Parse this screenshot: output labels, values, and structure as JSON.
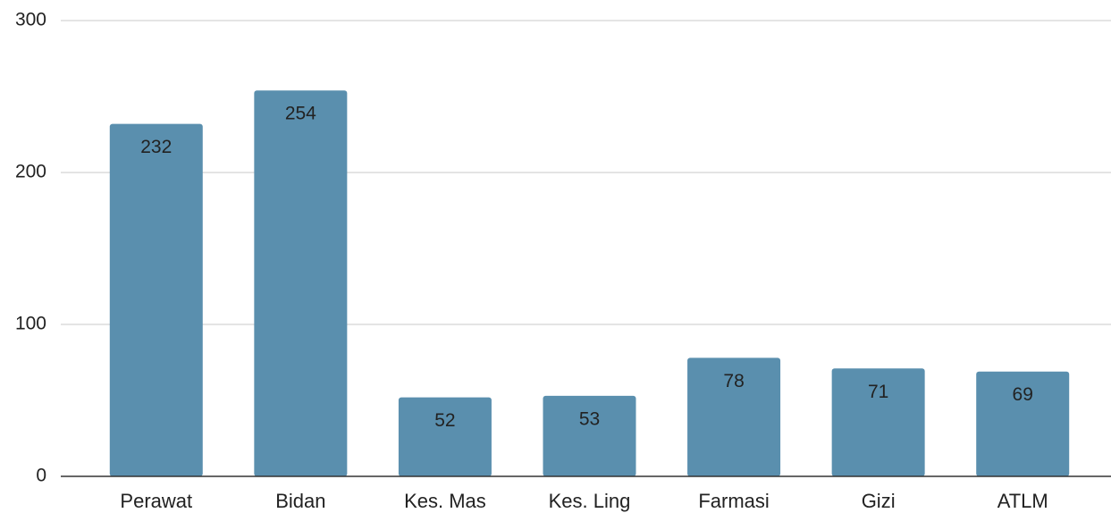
{
  "chart_data": {
    "type": "bar",
    "categories": [
      "Perawat",
      "Bidan",
      "Kes. Mas",
      "Kes. Ling",
      "Farmasi",
      "Gizi",
      "ATLM"
    ],
    "values": [
      232,
      254,
      52,
      53,
      78,
      71,
      69
    ],
    "color": "#5a8fae",
    "ylim": [
      0,
      300
    ],
    "yticks": [
      0,
      100,
      200,
      300
    ],
    "grid": true
  }
}
